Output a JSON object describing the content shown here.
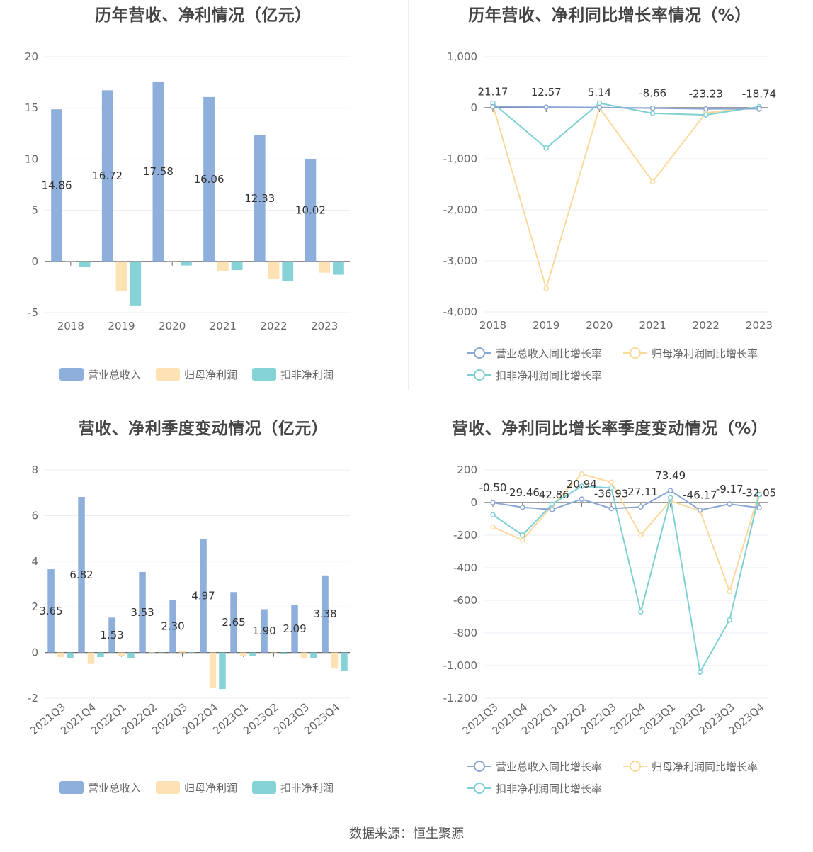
{
  "footer": "数据来源：恒生聚源",
  "colors": {
    "revenue": "#8eaedb",
    "net_profit": "#fde2b4",
    "deducted": "#85d3d6",
    "revenue_line": "#8ba7d6",
    "net_line": "#fbd99c",
    "deducted_line": "#7ed0d3",
    "grid": "#e9ecf3",
    "axis": "#666666"
  },
  "legend_bar": [
    "营业总收入",
    "归母净利润",
    "扣非净利润"
  ],
  "legend_line": [
    "营业总收入同比增长率",
    "归母净利润同比增长率",
    "扣非净利润同比增长率"
  ],
  "chart_data": [
    {
      "type": "bar",
      "title": "历年营收、净利情况（亿元）",
      "categories": [
        "2018",
        "2019",
        "2020",
        "2021",
        "2022",
        "2023"
      ],
      "ylim": [
        -5,
        20
      ],
      "yticks": [
        -5,
        0,
        5,
        10,
        15,
        20
      ],
      "tick_labels": [
        "-5",
        "0",
        "5",
        "10",
        "15",
        "20"
      ],
      "series": [
        {
          "name": "营业总收入",
          "values": [
            14.86,
            16.72,
            17.58,
            16.06,
            12.33,
            10.02
          ],
          "labels": [
            "14.86",
            "16.72",
            "17.58",
            "16.06",
            "12.33",
            "10.02"
          ]
        },
        {
          "name": "归母净利润",
          "values": [
            -0.05,
            -2.85,
            -0.05,
            -0.95,
            -1.7,
            -1.1
          ]
        },
        {
          "name": "扣非净利润",
          "values": [
            -0.5,
            -4.3,
            -0.4,
            -0.85,
            -1.9,
            -1.3
          ]
        }
      ],
      "legend": "bottom",
      "grid": true
    },
    {
      "type": "line",
      "title": "历年营收、净利同比增长率情况（%）",
      "categories": [
        "2018",
        "2019",
        "2020",
        "2021",
        "2022",
        "2023"
      ],
      "ylim": [
        -4000,
        1000
      ],
      "yticks": [
        -4000,
        -3000,
        -2000,
        -1000,
        0,
        1000
      ],
      "tick_labels": [
        "-4,000",
        "-3,000",
        "-2,000",
        "-1,000",
        "0",
        "1,000"
      ],
      "series": [
        {
          "name": "营业总收入同比增长率",
          "values": [
            21.17,
            12.57,
            5.14,
            -8.66,
            -23.23,
            -18.74
          ],
          "labels": [
            "21.17",
            "12.57",
            "5.14",
            "-8.66",
            "-23.23",
            "-18.74"
          ]
        },
        {
          "name": "归母净利润同比增长率",
          "values": [
            50,
            -3540,
            0,
            -1450,
            -100,
            10
          ]
        },
        {
          "name": "扣非净利润同比增长率",
          "values": [
            90,
            -790,
            90,
            -110,
            -140,
            20
          ]
        }
      ],
      "legend": "bottom",
      "grid": true
    },
    {
      "type": "bar",
      "title": "营收、净利季度变动情况（亿元）",
      "categories": [
        "2021Q3",
        "2021Q4",
        "2022Q1",
        "2022Q2",
        "2022Q3",
        "2022Q4",
        "2023Q1",
        "2023Q2",
        "2023Q3",
        "2023Q4"
      ],
      "ylim": [
        -2,
        8
      ],
      "yticks": [
        -2,
        0,
        2,
        4,
        6,
        8
      ],
      "tick_labels": [
        "-2",
        "0",
        "2",
        "4",
        "6",
        "8"
      ],
      "series": [
        {
          "name": "营业总收入",
          "values": [
            3.65,
            6.82,
            1.53,
            3.53,
            2.3,
            4.97,
            2.65,
            1.9,
            2.09,
            3.38
          ],
          "labels": [
            "3.65",
            "6.82",
            "1.53",
            "3.53",
            "2.30",
            "4.97",
            "2.65",
            "1.90",
            "2.09",
            "3.38"
          ]
        },
        {
          "name": "归母净利润",
          "values": [
            -0.2,
            -0.5,
            -0.15,
            0.02,
            0.06,
            -1.55,
            -0.15,
            -0.02,
            -0.25,
            -0.7
          ]
        },
        {
          "name": "扣非净利润",
          "values": [
            -0.25,
            -0.2,
            -0.25,
            0.0,
            0.02,
            -1.6,
            -0.15,
            -0.05,
            -0.25,
            -0.8
          ]
        }
      ],
      "legend": "bottom",
      "grid": true
    },
    {
      "type": "line",
      "title": "营收、净利同比增长率季度变动情况（%）",
      "categories": [
        "2021Q3",
        "2021Q4",
        "2022Q1",
        "2022Q2",
        "2022Q3",
        "2022Q4",
        "2023Q1",
        "2023Q2",
        "2023Q3",
        "2023Q4"
      ],
      "ylim": [
        -1200,
        200
      ],
      "yticks": [
        -1200,
        -1000,
        -800,
        -600,
        -400,
        -200,
        0,
        200
      ],
      "tick_labels": [
        "-1,200",
        "-1,000",
        "-800",
        "-600",
        "-400",
        "-200",
        "0",
        "200"
      ],
      "series": [
        {
          "name": "营业总收入同比增长率",
          "values": [
            -0.5,
            -29.46,
            -42.86,
            20.94,
            -36.93,
            -27.11,
            73.49,
            -46.17,
            -9.17,
            -32.05
          ],
          "labels": [
            "-0.50",
            "-29.46",
            "-42.86",
            "20.94",
            "-36.93",
            "-27.11",
            "73.49",
            "-46.17",
            "-9.17",
            "-32.05"
          ]
        },
        {
          "name": "归母净利润同比增长率",
          "values": [
            -150,
            -230,
            -20,
            175,
            125,
            -200,
            10,
            -50,
            -545,
            60
          ]
        },
        {
          "name": "扣非净利润同比增长率",
          "values": [
            -75,
            -200,
            -10,
            100,
            90,
            -670,
            30,
            -1040,
            -720,
            50
          ]
        }
      ],
      "legend": "bottom",
      "grid": true
    }
  ]
}
